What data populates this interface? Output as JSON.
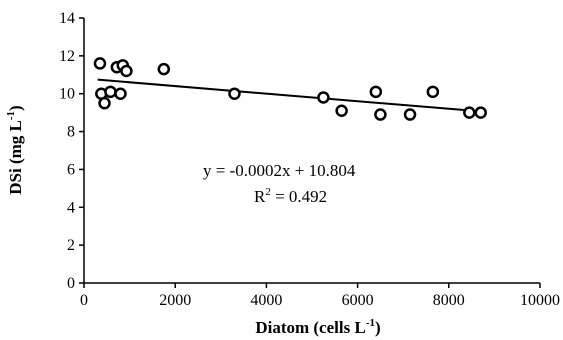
{
  "chart_data": {
    "type": "scatter",
    "xlabel": {
      "text": "Diatom  (cells L",
      "sup": "-1",
      "tail": ")"
    },
    "ylabel": {
      "text": "DSi  (mg L",
      "sup": "-1",
      "tail": ")"
    },
    "xlim": [
      0,
      10000
    ],
    "ylim": [
      0,
      14
    ],
    "xticks": [
      0,
      2000,
      4000,
      6000,
      8000,
      10000
    ],
    "yticks": [
      0,
      2,
      4,
      6,
      8,
      10,
      12,
      14
    ],
    "grid": false,
    "points": [
      {
        "x": 350,
        "y": 11.6
      },
      {
        "x": 380,
        "y": 10.0
      },
      {
        "x": 450,
        "y": 9.5
      },
      {
        "x": 580,
        "y": 10.1
      },
      {
        "x": 720,
        "y": 11.4
      },
      {
        "x": 800,
        "y": 10.0
      },
      {
        "x": 850,
        "y": 11.5
      },
      {
        "x": 930,
        "y": 11.2
      },
      {
        "x": 1750,
        "y": 11.3
      },
      {
        "x": 3300,
        "y": 10.0
      },
      {
        "x": 5250,
        "y": 9.8
      },
      {
        "x": 5650,
        "y": 9.1
      },
      {
        "x": 6400,
        "y": 10.1
      },
      {
        "x": 6500,
        "y": 8.9
      },
      {
        "x": 7150,
        "y": 8.9
      },
      {
        "x": 7650,
        "y": 10.1
      },
      {
        "x": 8450,
        "y": 9.0
      },
      {
        "x": 8700,
        "y": 9.0
      }
    ],
    "trendline": {
      "slope": -0.0002,
      "intercept": 10.804,
      "x_range": [
        300,
        8700
      ]
    },
    "annotations": {
      "equation": "y = -0.0002x + 10.804",
      "r2_prefix": "R",
      "r2_sup": "2",
      "r2_value": " = 0.492"
    }
  }
}
